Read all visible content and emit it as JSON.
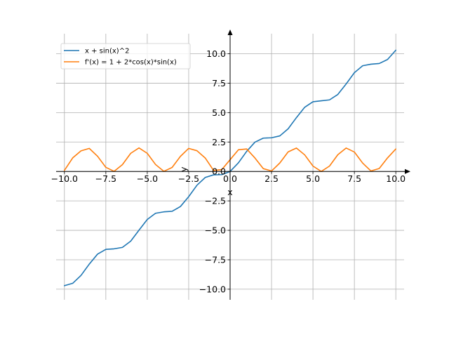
{
  "chart_data": {
    "type": "line",
    "title": "",
    "xlabel": "x",
    "ylabel": "y",
    "xlim": [
      -10.5,
      10.5
    ],
    "ylim": [
      -10.9,
      11.7
    ],
    "x_ticks": [
      -10.0,
      -7.5,
      -5.0,
      -2.5,
      0.0,
      2.5,
      5.0,
      7.5,
      10.0
    ],
    "x_tick_labels": [
      "−10.0",
      "−7.5",
      "−5.0",
      "−2.5",
      "0.0",
      "2.5",
      "5.0",
      "7.5",
      "10.0"
    ],
    "y_ticks": [
      -10.0,
      -7.5,
      -5.0,
      -2.5,
      0.0,
      2.5,
      5.0,
      7.5,
      10.0
    ],
    "y_tick_labels": [
      "−10.0",
      "−7.5",
      "−5.0",
      "−2.5",
      "0.0",
      "2.5",
      "5.0",
      "7.5",
      "10.0"
    ],
    "grid": true,
    "legend_position": "top-left",
    "axes_style": "centered-spines-with-arrows",
    "series": [
      {
        "name": "x + sin(x)^2",
        "color": "#1f77b4",
        "x": [
          -10.0,
          -9.5,
          -9.0,
          -8.5,
          -8.0,
          -7.5,
          -7.0,
          -6.5,
          -6.0,
          -5.5,
          -5.0,
          -4.5,
          -4.0,
          -3.5,
          -3.0,
          -2.5,
          -2.0,
          -1.5,
          -1.0,
          -0.5,
          0.0,
          0.5,
          1.0,
          1.5,
          2.0,
          2.5,
          3.0,
          3.5,
          4.0,
          4.5,
          5.0,
          5.5,
          6.0,
          6.5,
          7.0,
          7.5,
          8.0,
          8.5,
          9.0,
          9.5,
          10.0
        ],
        "y": [
          -9.7,
          -9.5,
          -8.83,
          -7.87,
          -7.02,
          -6.62,
          -6.57,
          -6.45,
          -5.92,
          -4.99,
          -4.08,
          -3.55,
          -3.43,
          -3.38,
          -2.98,
          -2.14,
          -1.17,
          -0.51,
          -0.29,
          -0.27,
          0.0,
          0.73,
          1.71,
          2.49,
          2.83,
          2.86,
          3.02,
          3.62,
          4.57,
          5.45,
          5.92,
          6.0,
          6.08,
          6.54,
          7.43,
          8.39,
          8.98,
          9.11,
          9.17,
          9.51,
          10.3
        ]
      },
      {
        "name": "f'(x) = 1 + 2*cos(x)*sin(x)",
        "color": "#ff7f0e",
        "x": [
          -10.0,
          -9.5,
          -9.0,
          -8.5,
          -8.0,
          -7.5,
          -7.0,
          -6.5,
          -6.0,
          -5.5,
          -5.0,
          -4.5,
          -4.0,
          -3.5,
          -3.0,
          -2.5,
          -2.0,
          -1.5,
          -1.0,
          -0.5,
          0.0,
          0.5,
          1.0,
          1.5,
          2.0,
          2.5,
          3.0,
          3.5,
          4.0,
          4.5,
          5.0,
          5.5,
          6.0,
          6.5,
          7.0,
          7.5,
          8.0,
          8.5,
          9.0,
          9.5,
          10.0
        ],
        "y": [
          0.09,
          1.15,
          1.75,
          1.96,
          1.29,
          0.35,
          0.01,
          0.58,
          1.54,
          2.0,
          1.54,
          0.59,
          0.01,
          0.34,
          1.28,
          1.96,
          1.76,
          1.14,
          0.09,
          0.16,
          1.0,
          1.84,
          1.91,
          1.14,
          0.24,
          0.04,
          0.72,
          1.66,
          1.99,
          1.41,
          0.46,
          0.0,
          0.46,
          1.42,
          1.99,
          1.65,
          0.71,
          0.04,
          0.25,
          1.15,
          1.91
        ]
      }
    ]
  }
}
